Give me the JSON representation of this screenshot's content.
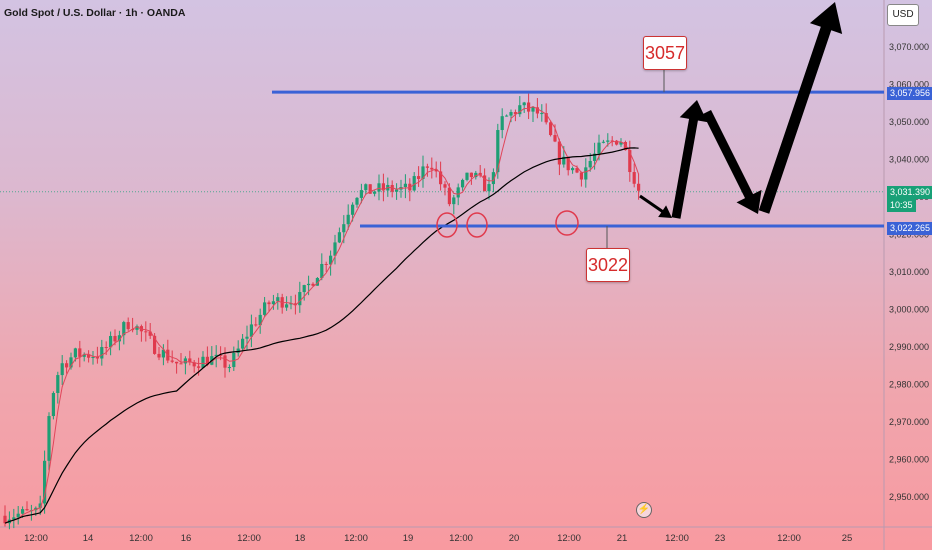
{
  "header": {
    "symbol_title": "Gold Spot / U.S. Dollar · 1h · OANDA",
    "currency_button": "USD"
  },
  "price_axis": {
    "ticks": [
      "3,070.000",
      "3,060.000",
      "3,050.000",
      "3,040.000",
      "3,030.000",
      "3,020.000",
      "3,010.000",
      "3,000.000",
      "2,990.000",
      "2,980.000",
      "2,970.000",
      "2,960.000",
      "2,950.000"
    ],
    "resistance_tag": "3,057.956",
    "current_price_tag": "3,031.390",
    "countdown": "10:35",
    "support_tag": "3,022.265"
  },
  "time_axis": {
    "ticks": [
      "12:00",
      "14",
      "12:00",
      "16",
      "12:00",
      "18",
      "12:00",
      "19",
      "12:00",
      "20",
      "12:00",
      "21",
      "12:00",
      "23",
      "12:00",
      "25"
    ]
  },
  "annotations": {
    "resistance_label": "3057",
    "support_label": "3022"
  },
  "colors": {
    "bull_candle": "#1e9e74",
    "bear_candle": "#e03a4d",
    "level_line": "#3a62d6",
    "ma_fast": "#e0465a",
    "ma_slow": "#000000",
    "marker_circle": "#e03a4d",
    "arrow": "#000000"
  },
  "chart_data": {
    "type": "candlestick",
    "title": "Gold Spot / U.S. Dollar · 1h · OANDA",
    "ylim": [
      2943,
      3078
    ],
    "levels": {
      "resistance": 3057.956,
      "support": 3022.265,
      "last_price": 3031.39
    },
    "approx_close_path": [
      {
        "x": "13 12:00",
        "y": 2944
      },
      {
        "x": "13 14:00",
        "y": 2952
      },
      {
        "x": "13 16:00",
        "y": 2978
      },
      {
        "x": "13 20:00",
        "y": 2986
      },
      {
        "x": "14 00:00",
        "y": 2988
      },
      {
        "x": "14 12:00",
        "y": 2987
      },
      {
        "x": "14 20:00",
        "y": 2997
      },
      {
        "x": "15 04:00",
        "y": 2991
      },
      {
        "x": "15 12:00",
        "y": 2985
      },
      {
        "x": "16 00:00",
        "y": 2989
      },
      {
        "x": "16 08:00",
        "y": 2987
      },
      {
        "x": "16 16:00",
        "y": 2984
      },
      {
        "x": "17 00:00",
        "y": 2993
      },
      {
        "x": "17 12:00",
        "y": 3000
      },
      {
        "x": "17 20:00",
        "y": 3002
      },
      {
        "x": "18 04:00",
        "y": 3014
      },
      {
        "x": "18 12:00",
        "y": 3032
      },
      {
        "x": "18 20:00",
        "y": 3033
      },
      {
        "x": "19 04:00",
        "y": 3030
      },
      {
        "x": "19 08:00",
        "y": 3040
      },
      {
        "x": "19 12:00",
        "y": 3030
      },
      {
        "x": "19 16:00",
        "y": 3035
      },
      {
        "x": "19 22:00",
        "y": 3031
      },
      {
        "x": "20 02:00",
        "y": 3050
      },
      {
        "x": "20 06:00",
        "y": 3054
      },
      {
        "x": "20 10:00",
        "y": 3048
      },
      {
        "x": "20 14:00",
        "y": 3038
      },
      {
        "x": "20 20:00",
        "y": 3042
      },
      {
        "x": "21 00:00",
        "y": 3045
      },
      {
        "x": "21 04:00",
        "y": 3031
      }
    ],
    "projection_path": [
      {
        "x": "21 06:00",
        "y": 3031
      },
      {
        "x": "21 12:00",
        "y": 3023
      },
      {
        "x": "21 18:00",
        "y": 3054
      },
      {
        "x": "22 06:00",
        "y": 3023
      },
      {
        "x": "23 18:00",
        "y": 3078
      }
    ]
  }
}
